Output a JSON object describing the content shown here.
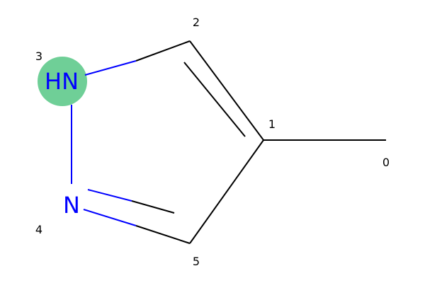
{
  "molecule": {
    "highlight_color": "#6FCF97",
    "nitrogen_color": "#0000FF",
    "carbon_color": "#000000",
    "atoms": [
      {
        "index": "0",
        "symbol": ""
      },
      {
        "index": "1",
        "symbol": ""
      },
      {
        "index": "2",
        "symbol": ""
      },
      {
        "index": "3",
        "symbol": "HN",
        "highlighted": true
      },
      {
        "index": "4",
        "symbol": "N"
      },
      {
        "index": "5",
        "symbol": ""
      }
    ],
    "bonds": [
      {
        "from": "0",
        "to": "1",
        "order": 1
      },
      {
        "from": "1",
        "to": "2",
        "order": 2
      },
      {
        "from": "2",
        "to": "3",
        "order": 1
      },
      {
        "from": "3",
        "to": "4",
        "order": 1
      },
      {
        "from": "4",
        "to": "5",
        "order": 2
      },
      {
        "from": "5",
        "to": "1",
        "order": 1
      }
    ]
  }
}
